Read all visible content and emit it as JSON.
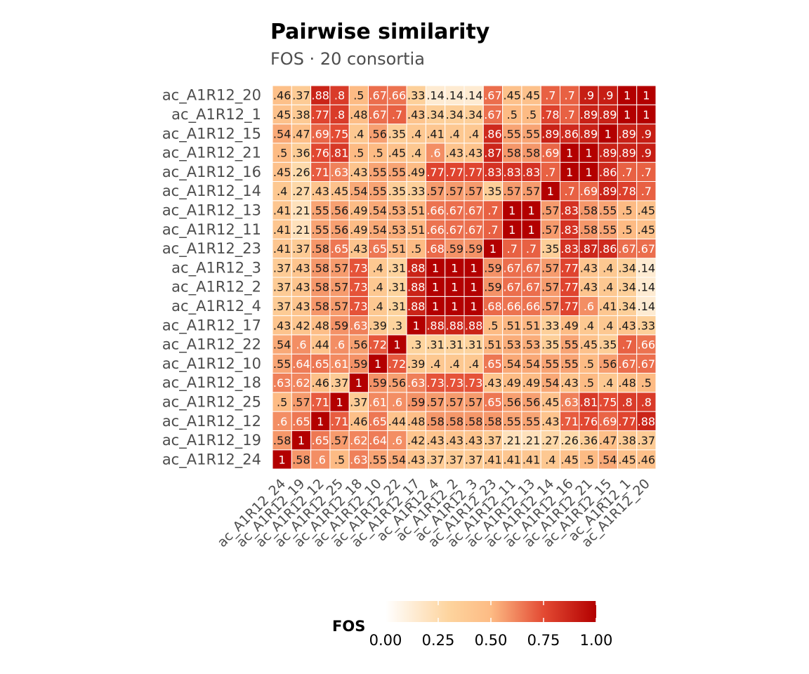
{
  "chart_data": {
    "type": "heatmap",
    "title": "Pairwise similarity",
    "subtitle": "FOS · 20 consortia",
    "labels": [
      "ac_A1R12_24",
      "ac_A1R12_19",
      "ac_A1R12_12",
      "ac_A1R12_25",
      "ac_A1R12_18",
      "ac_A1R12_10",
      "ac_A1R12_22",
      "ac_A1R12_17",
      "ac_A1R12_4",
      "ac_A1R12_2",
      "ac_A1R12_3",
      "ac_A1R12_23",
      "ac_A1R12_11",
      "ac_A1R12_13",
      "ac_A1R12_14",
      "ac_A1R12_16",
      "ac_A1R12_21",
      "ac_A1R12_15",
      "ac_A1R12_1",
      "ac_A1R12_20"
    ],
    "values": [
      [
        1.0,
        0.58,
        0.6,
        0.5,
        0.63,
        0.55,
        0.54,
        0.43,
        0.37,
        0.37,
        0.37,
        0.41,
        0.41,
        0.41,
        0.4,
        0.45,
        0.5,
        0.54,
        0.45,
        0.46
      ],
      [
        0.58,
        1.0,
        0.65,
        0.57,
        0.62,
        0.64,
        0.6,
        0.42,
        0.43,
        0.43,
        0.43,
        0.37,
        0.21,
        0.21,
        0.27,
        0.26,
        0.36,
        0.47,
        0.38,
        0.37
      ],
      [
        0.6,
        0.65,
        1.0,
        0.71,
        0.46,
        0.65,
        0.44,
        0.48,
        0.58,
        0.58,
        0.58,
        0.58,
        0.55,
        0.55,
        0.43,
        0.71,
        0.76,
        0.69,
        0.77,
        0.88
      ],
      [
        0.5,
        0.57,
        0.71,
        1.0,
        0.37,
        0.61,
        0.6,
        0.59,
        0.57,
        0.57,
        0.57,
        0.65,
        0.56,
        0.56,
        0.45,
        0.63,
        0.81,
        0.75,
        0.8,
        0.8
      ],
      [
        0.63,
        0.62,
        0.46,
        0.37,
        1.0,
        0.59,
        0.56,
        0.63,
        0.73,
        0.73,
        0.73,
        0.43,
        0.49,
        0.49,
        0.54,
        0.43,
        0.5,
        0.4,
        0.48,
        0.5
      ],
      [
        0.55,
        0.64,
        0.65,
        0.61,
        0.59,
        1.0,
        0.72,
        0.39,
        0.4,
        0.4,
        0.4,
        0.65,
        0.54,
        0.54,
        0.55,
        0.55,
        0.5,
        0.56,
        0.67,
        0.67
      ],
      [
        0.54,
        0.6,
        0.44,
        0.6,
        0.56,
        0.72,
        1.0,
        0.3,
        0.31,
        0.31,
        0.31,
        0.51,
        0.53,
        0.53,
        0.35,
        0.55,
        0.45,
        0.35,
        0.7,
        0.66
      ],
      [
        0.43,
        0.42,
        0.48,
        0.59,
        0.63,
        0.39,
        0.3,
        1.0,
        0.88,
        0.88,
        0.88,
        0.5,
        0.51,
        0.51,
        0.33,
        0.49,
        0.4,
        0.4,
        0.43,
        0.33
      ],
      [
        0.37,
        0.43,
        0.58,
        0.57,
        0.73,
        0.4,
        0.31,
        0.88,
        1.0,
        1.0,
        1.0,
        0.68,
        0.66,
        0.66,
        0.57,
        0.77,
        0.6,
        0.41,
        0.34,
        0.14
      ],
      [
        0.37,
        0.43,
        0.58,
        0.57,
        0.73,
        0.4,
        0.31,
        0.88,
        1.0,
        1.0,
        1.0,
        0.59,
        0.67,
        0.67,
        0.57,
        0.77,
        0.43,
        0.4,
        0.34,
        0.14
      ],
      [
        0.37,
        0.43,
        0.58,
        0.57,
        0.73,
        0.4,
        0.31,
        0.88,
        1.0,
        1.0,
        1.0,
        0.59,
        0.67,
        0.67,
        0.57,
        0.77,
        0.43,
        0.4,
        0.34,
        0.14
      ],
      [
        0.41,
        0.37,
        0.58,
        0.65,
        0.43,
        0.65,
        0.51,
        0.5,
        0.68,
        0.59,
        0.59,
        1.0,
        0.7,
        0.7,
        0.35,
        0.83,
        0.87,
        0.86,
        0.67,
        0.67
      ],
      [
        0.41,
        0.21,
        0.55,
        0.56,
        0.49,
        0.54,
        0.53,
        0.51,
        0.66,
        0.67,
        0.67,
        0.7,
        1.0,
        1.0,
        0.57,
        0.83,
        0.58,
        0.55,
        0.5,
        0.45
      ],
      [
        0.41,
        0.21,
        0.55,
        0.56,
        0.49,
        0.54,
        0.53,
        0.51,
        0.66,
        0.67,
        0.67,
        0.7,
        1.0,
        1.0,
        0.57,
        0.83,
        0.58,
        0.55,
        0.5,
        0.45
      ],
      [
        0.4,
        0.27,
        0.43,
        0.45,
        0.54,
        0.55,
        0.35,
        0.33,
        0.57,
        0.57,
        0.57,
        0.35,
        0.57,
        0.57,
        1.0,
        0.7,
        0.69,
        0.89,
        0.78,
        0.7
      ],
      [
        0.45,
        0.26,
        0.71,
        0.63,
        0.43,
        0.55,
        0.55,
        0.49,
        0.77,
        0.77,
        0.77,
        0.83,
        0.83,
        0.83,
        0.7,
        1.0,
        1.0,
        0.86,
        0.7,
        0.7
      ],
      [
        0.5,
        0.36,
        0.76,
        0.81,
        0.5,
        0.5,
        0.45,
        0.4,
        0.6,
        0.43,
        0.43,
        0.87,
        0.58,
        0.58,
        0.69,
        1.0,
        1.0,
        0.89,
        0.89,
        0.9
      ],
      [
        0.54,
        0.47,
        0.69,
        0.75,
        0.4,
        0.56,
        0.35,
        0.4,
        0.41,
        0.4,
        0.4,
        0.86,
        0.55,
        0.55,
        0.89,
        0.86,
        0.89,
        1.0,
        0.89,
        0.9
      ],
      [
        0.45,
        0.38,
        0.77,
        0.8,
        0.48,
        0.67,
        0.7,
        0.43,
        0.34,
        0.34,
        0.34,
        0.67,
        0.5,
        0.5,
        0.78,
        0.7,
        0.89,
        0.89,
        1.0,
        1.0
      ],
      [
        0.46,
        0.37,
        0.88,
        0.8,
        0.5,
        0.67,
        0.66,
        0.33,
        0.14,
        0.14,
        0.14,
        0.67,
        0.45,
        0.45,
        0.7,
        0.7,
        0.9,
        0.9,
        1.0,
        1.0
      ]
    ],
    "legend": {
      "title": "FOS",
      "range": [
        0,
        1
      ],
      "ticks": [
        "0.00",
        "0.25",
        "0.50",
        "0.75",
        "1.00"
      ],
      "tick_values": [
        0,
        0.25,
        0.5,
        0.75,
        1.0
      ],
      "placement": "bottom"
    },
    "colors": [
      "#ffffff",
      "#fdd49e",
      "#fdbb84",
      "#e34a33",
      "#b30000"
    ]
  }
}
